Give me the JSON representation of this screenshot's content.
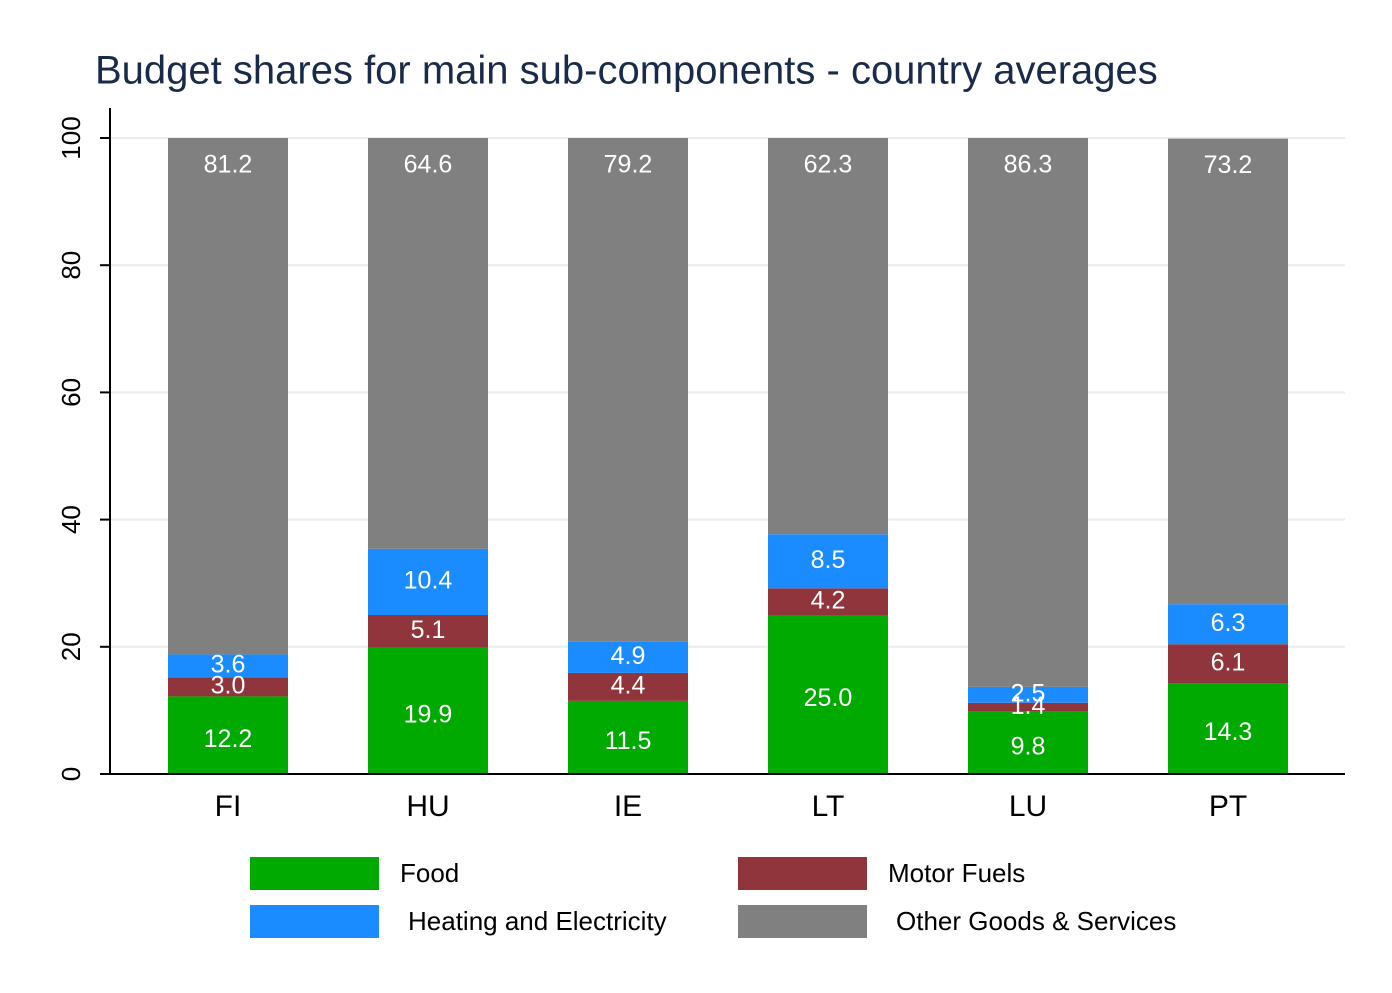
{
  "chart_data": {
    "type": "stacked_bar",
    "title": "Budget shares for main sub-components - country averages",
    "categories": [
      "FI",
      "HU",
      "IE",
      "LT",
      "LU",
      "PT"
    ],
    "series": [
      {
        "name": "Food",
        "color": "#00aa00",
        "values": [
          12.2,
          19.9,
          11.5,
          25.0,
          9.8,
          14.3
        ],
        "value_labels": [
          "12.2",
          "19.9",
          "11.5",
          "25.0",
          "9.8",
          "14.3"
        ]
      },
      {
        "name": "Motor Fuels",
        "color": "#90353b",
        "values": [
          3.0,
          5.1,
          4.4,
          4.2,
          1.4,
          6.1
        ],
        "value_labels": [
          "3.0",
          "5.1",
          "4.4",
          "4.2",
          "1.4",
          "6.1"
        ]
      },
      {
        "name": "Heating and Electricity",
        "color": "#1a8cff",
        "values": [
          3.6,
          10.4,
          4.9,
          8.5,
          2.5,
          6.3
        ],
        "value_labels": [
          "3.6",
          "10.4",
          "4.9",
          "8.5",
          "2.5",
          "6.3"
        ]
      },
      {
        "name": "Other Goods & Services",
        "color": "#808080",
        "values": [
          81.2,
          64.6,
          79.2,
          62.3,
          86.3,
          73.2
        ],
        "value_labels": [
          "81.2",
          "64.6",
          "79.2",
          "62.3",
          "86.3",
          "73.2"
        ]
      }
    ],
    "ylim": [
      0,
      100
    ],
    "yticks": [
      0,
      20,
      40,
      60,
      80,
      100
    ],
    "grid": true,
    "legend": "bottom"
  }
}
